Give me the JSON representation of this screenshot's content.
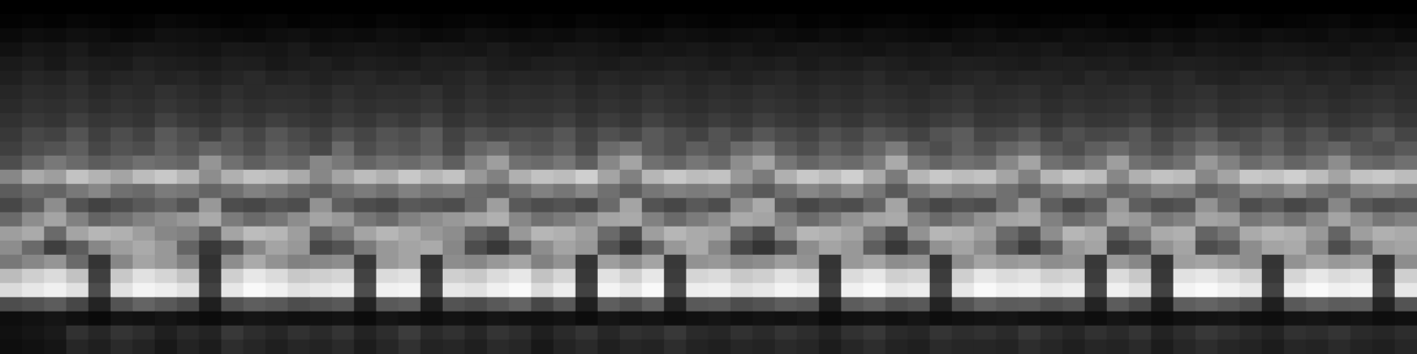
{
  "chart_data": {
    "type": "heatmap",
    "tick_labels": false,
    "grid": false,
    "color_range": [
      0,
      100
    ],
    "cells": [
      [
        0,
        0,
        0,
        0,
        0,
        0,
        0,
        0,
        0,
        0,
        0,
        0,
        0,
        0,
        0,
        0,
        0,
        0,
        0,
        0,
        0,
        0,
        0,
        0,
        0,
        0,
        0,
        0,
        0,
        0,
        0,
        0,
        0,
        0,
        0,
        0,
        0,
        0,
        0,
        0,
        0,
        0,
        0,
        0,
        0,
        0,
        0,
        0,
        0,
        0,
        0,
        0,
        0,
        0,
        0,
        0,
        0,
        0,
        0,
        0,
        0,
        0,
        0,
        0
      ],
      [
        2,
        3,
        2,
        4,
        3,
        2,
        3,
        5,
        4,
        3,
        2,
        3,
        4,
        2,
        3,
        3,
        2,
        4,
        3,
        2,
        3,
        4,
        3,
        2,
        3,
        2,
        4,
        3,
        3,
        2,
        4,
        3,
        2,
        3,
        3,
        4,
        2,
        3,
        2,
        3,
        4,
        3,
        2,
        3,
        4,
        3,
        2,
        3,
        3,
        4,
        2,
        3,
        3,
        2,
        4,
        5,
        3,
        2,
        3,
        4,
        5,
        3,
        4,
        3
      ],
      [
        6,
        8,
        7,
        9,
        8,
        6,
        7,
        10,
        9,
        8,
        7,
        6,
        8,
        9,
        7,
        8,
        7,
        9,
        8,
        6,
        7,
        10,
        8,
        7,
        8,
        7,
        9,
        8,
        6,
        7,
        9,
        8,
        7,
        8,
        9,
        7,
        6,
        8,
        7,
        9,
        8,
        7,
        6,
        8,
        9,
        7,
        8,
        7,
        9,
        8,
        7,
        6,
        8,
        7,
        9,
        8,
        7,
        9,
        8,
        7,
        10,
        8,
        9,
        7
      ],
      [
        10,
        13,
        12,
        15,
        11,
        12,
        14,
        13,
        12,
        11,
        14,
        13,
        12,
        15,
        11,
        12,
        13,
        12,
        11,
        14,
        13,
        12,
        15,
        12,
        11,
        13,
        14,
        12,
        11,
        13,
        12,
        14,
        12,
        13,
        11,
        12,
        14,
        13,
        12,
        11,
        13,
        12,
        14,
        11,
        12,
        13,
        12,
        14,
        11,
        12,
        13,
        12,
        14,
        11,
        13,
        12,
        12,
        14,
        13,
        12,
        11,
        13,
        12,
        14
      ],
      [
        15,
        17,
        14,
        18,
        16,
        15,
        19,
        17,
        16,
        15,
        18,
        17,
        14,
        16,
        18,
        15,
        17,
        16,
        15,
        18,
        17,
        19,
        16,
        15,
        17,
        18,
        16,
        15,
        17,
        16,
        18,
        17,
        15,
        17,
        16,
        18,
        15,
        17,
        16,
        19,
        17,
        15,
        16,
        18,
        17,
        16,
        15,
        17,
        18,
        16,
        17,
        15,
        16,
        18,
        17,
        16,
        15,
        17,
        18,
        16,
        17,
        15,
        16,
        18
      ],
      [
        18,
        22,
        20,
        24,
        19,
        21,
        23,
        20,
        22,
        19,
        21,
        24,
        20,
        22,
        19,
        21,
        23,
        20,
        22,
        19,
        21,
        24,
        20,
        22,
        21,
        23,
        19,
        22,
        20,
        21,
        23,
        20,
        22,
        19,
        21,
        23,
        20,
        22,
        21,
        24,
        20,
        22,
        19,
        21,
        23,
        20,
        22,
        21,
        19,
        23,
        20,
        22,
        21,
        24,
        20,
        19,
        22,
        21,
        23,
        20,
        22,
        19,
        21,
        23
      ],
      [
        22,
        25,
        24,
        27,
        23,
        26,
        24,
        28,
        25,
        23,
        27,
        24,
        26,
        25,
        23,
        27,
        24,
        26,
        25,
        28,
        23,
        27,
        24,
        26,
        25,
        27,
        23,
        26,
        24,
        28,
        25,
        23,
        26,
        24,
        27,
        25,
        23,
        26,
        24,
        27,
        25,
        23,
        26,
        28,
        24,
        25,
        27,
        23,
        26,
        24,
        25,
        27,
        23,
        26,
        28,
        24,
        25,
        27,
        24,
        26,
        23,
        25,
        27,
        24
      ],
      [
        24,
        28,
        27,
        30,
        26,
        29,
        27,
        31,
        28,
        26,
        30,
        27,
        29,
        28,
        26,
        30,
        27,
        29,
        28,
        31,
        26,
        30,
        27,
        29,
        28,
        30,
        26,
        29,
        27,
        31,
        28,
        26,
        29,
        27,
        30,
        28,
        26,
        29,
        27,
        30,
        28,
        26,
        29,
        31,
        27,
        28,
        30,
        26,
        29,
        27,
        28,
        30,
        26,
        29,
        31,
        27,
        28,
        30,
        27,
        29,
        26,
        28,
        30,
        27
      ],
      [
        28,
        32,
        30,
        35,
        31,
        33,
        30,
        36,
        33,
        30,
        34,
        31,
        35,
        32,
        30,
        34,
        31,
        35,
        33,
        36,
        30,
        34,
        31,
        33,
        32,
        35,
        30,
        34,
        31,
        36,
        33,
        30,
        34,
        31,
        35,
        32,
        30,
        34,
        31,
        35,
        33,
        30,
        34,
        36,
        31,
        32,
        35,
        30,
        34,
        31,
        32,
        35,
        30,
        33,
        36,
        31,
        32,
        35,
        31,
        34,
        30,
        32,
        35,
        31
      ],
      [
        32,
        38,
        36,
        42,
        35,
        40,
        36,
        44,
        40,
        35,
        42,
        37,
        43,
        39,
        35,
        41,
        37,
        42,
        40,
        45,
        36,
        41,
        38,
        40,
        39,
        43,
        36,
        41,
        38,
        44,
        40,
        36,
        42,
        37,
        43,
        39,
        36,
        41,
        38,
        43,
        40,
        36,
        42,
        45,
        37,
        39,
        43,
        36,
        41,
        38,
        39,
        43,
        36,
        40,
        44,
        37,
        39,
        43,
        37,
        41,
        36,
        39,
        43,
        37
      ],
      [
        35,
        40,
        42,
        46,
        38,
        42,
        40,
        46,
        42,
        48,
        44,
        40,
        46,
        42,
        38,
        50,
        40,
        44,
        42,
        46,
        38,
        48,
        52,
        44,
        42,
        46,
        38,
        50,
        54,
        44,
        40,
        46,
        42,
        50,
        55,
        44,
        40,
        46,
        42,
        48,
        56,
        44,
        40,
        46,
        42,
        48,
        52,
        44,
        40,
        46,
        50,
        44,
        40,
        46,
        52,
        48,
        42,
        46,
        40,
        44,
        48,
        42,
        40,
        44
      ],
      [
        40,
        48,
        55,
        50,
        45,
        48,
        52,
        50,
        48,
        65,
        52,
        46,
        50,
        48,
        60,
        55,
        48,
        52,
        50,
        54,
        46,
        58,
        68,
        52,
        50,
        54,
        46,
        60,
        70,
        52,
        48,
        54,
        50,
        62,
        70,
        54,
        48,
        52,
        50,
        56,
        72,
        54,
        48,
        52,
        50,
        60,
        70,
        52,
        48,
        54,
        68,
        52,
        48,
        52,
        66,
        58,
        50,
        54,
        48,
        52,
        62,
        50,
        48,
        52
      ],
      [
        60,
        72,
        68,
        80,
        75,
        70,
        78,
        82,
        76,
        62,
        74,
        80,
        78,
        72,
        60,
        70,
        78,
        74,
        82,
        76,
        80,
        66,
        58,
        74,
        80,
        78,
        84,
        70,
        58,
        76,
        82,
        78,
        80,
        66,
        56,
        74,
        82,
        78,
        84,
        72,
        56,
        76,
        82,
        78,
        80,
        70,
        58,
        76,
        82,
        78,
        60,
        74,
        80,
        78,
        60,
        70,
        82,
        80,
        84,
        78,
        70,
        80,
        82,
        78
      ],
      [
        45,
        50,
        48,
        55,
        60,
        52,
        50,
        56,
        54,
        48,
        52,
        58,
        55,
        50,
        46,
        52,
        56,
        52,
        58,
        54,
        56,
        50,
        46,
        52,
        58,
        54,
        60,
        52,
        46,
        54,
        58,
        56,
        58,
        50,
        44,
        52,
        60,
        56,
        62,
        54,
        44,
        54,
        60,
        56,
        58,
        52,
        46,
        54,
        60,
        56,
        48,
        52,
        58,
        56,
        46,
        50,
        58,
        56,
        62,
        54,
        50,
        58,
        60,
        56
      ],
      [
        38,
        45,
        62,
        42,
        36,
        40,
        44,
        48,
        42,
        66,
        40,
        38,
        42,
        40,
        64,
        46,
        40,
        38,
        44,
        42,
        40,
        50,
        68,
        44,
        40,
        42,
        38,
        50,
        70,
        42,
        38,
        44,
        40,
        62,
        72,
        44,
        38,
        42,
        40,
        48,
        70,
        44,
        38,
        42,
        40,
        52,
        68,
        46,
        38,
        44,
        66,
        46,
        40,
        42,
        64,
        52,
        40,
        44,
        38,
        42,
        60,
        44,
        40,
        42
      ],
      [
        50,
        62,
        70,
        58,
        48,
        52,
        58,
        62,
        66,
        72,
        56,
        50,
        54,
        62,
        70,
        66,
        54,
        50,
        58,
        62,
        66,
        70,
        74,
        60,
        52,
        56,
        62,
        70,
        72,
        58,
        50,
        56,
        62,
        72,
        70,
        58,
        50,
        56,
        64,
        70,
        72,
        58,
        50,
        56,
        64,
        70,
        72,
        58,
        50,
        56,
        70,
        66,
        54,
        58,
        70,
        68,
        54,
        58,
        52,
        60,
        70,
        62,
        54,
        58
      ],
      [
        68,
        72,
        50,
        70,
        76,
        74,
        68,
        60,
        58,
        45,
        70,
        78,
        76,
        68,
        48,
        56,
        70,
        76,
        72,
        66,
        62,
        48,
        42,
        66,
        76,
        74,
        68,
        50,
        40,
        68,
        76,
        72,
        70,
        48,
        40,
        62,
        76,
        74,
        70,
        54,
        40,
        64,
        76,
        74,
        68,
        50,
        42,
        62,
        76,
        72,
        46,
        58,
        72,
        74,
        48,
        54,
        72,
        76,
        74,
        66,
        48,
        68,
        74,
        72
      ],
      [
        62,
        50,
        35,
        45,
        60,
        68,
        72,
        66,
        48,
        32,
        42,
        60,
        70,
        66,
        38,
        42,
        56,
        66,
        70,
        72,
        60,
        40,
        32,
        44,
        62,
        70,
        66,
        42,
        30,
        48,
        66,
        72,
        60,
        38,
        30,
        42,
        62,
        70,
        66,
        46,
        32,
        44,
        64,
        70,
        62,
        44,
        34,
        46,
        66,
        70,
        36,
        42,
        64,
        70,
        40,
        44,
        62,
        70,
        72,
        60,
        40,
        52,
        68,
        70
      ],
      [
        55,
        60,
        65,
        50,
        30,
        60,
        70,
        66,
        58,
        28,
        62,
        72,
        64,
        58,
        60,
        62,
        32,
        66,
        70,
        30,
        62,
        60,
        66,
        70,
        58,
        64,
        30,
        68,
        62,
        70,
        32,
        64,
        66,
        60,
        62,
        68,
        64,
        30,
        66,
        70,
        62,
        64,
        30,
        62,
        70,
        66,
        68,
        62,
        64,
        32,
        66,
        60,
        30,
        68,
        70,
        66,
        62,
        30,
        64,
        70,
        66,
        68,
        30,
        62
      ],
      [
        78,
        84,
        88,
        80,
        35,
        82,
        90,
        86,
        80,
        32,
        84,
        92,
        88,
        82,
        84,
        86,
        36,
        88,
        90,
        34,
        84,
        82,
        88,
        92,
        80,
        86,
        32,
        90,
        84,
        92,
        34,
        86,
        88,
        82,
        84,
        90,
        86,
        32,
        88,
        92,
        84,
        86,
        34,
        84,
        92,
        88,
        90,
        84,
        86,
        34,
        88,
        82,
        32,
        90,
        92,
        88,
        84,
        32,
        86,
        92,
        88,
        90,
        34,
        84
      ],
      [
        88,
        92,
        95,
        90,
        40,
        90,
        96,
        94,
        90,
        36,
        92,
        98,
        95,
        90,
        92,
        94,
        40,
        95,
        96,
        38,
        92,
        90,
        95,
        98,
        88,
        94,
        36,
        96,
        92,
        98,
        38,
        94,
        95,
        90,
        92,
        96,
        94,
        36,
        95,
        98,
        92,
        94,
        38,
        92,
        98,
        95,
        96,
        92,
        94,
        38,
        95,
        90,
        36,
        96,
        98,
        95,
        92,
        36,
        94,
        98,
        95,
        96,
        38,
        92
      ],
      [
        40,
        42,
        45,
        38,
        20,
        42,
        48,
        44,
        40,
        18,
        42,
        46,
        44,
        40,
        42,
        44,
        20,
        44,
        46,
        18,
        42,
        40,
        44,
        48,
        38,
        44,
        18,
        46,
        42,
        48,
        20,
        44,
        45,
        40,
        42,
        46,
        44,
        18,
        45,
        48,
        42,
        44,
        20,
        42,
        48,
        45,
        46,
        42,
        44,
        20,
        45,
        40,
        18,
        46,
        48,
        45,
        42,
        18,
        44,
        48,
        45,
        46,
        20,
        42
      ],
      [
        8,
        10,
        12,
        9,
        6,
        11,
        10,
        12,
        9,
        7,
        10,
        12,
        11,
        9,
        10,
        11,
        7,
        12,
        10,
        8,
        11,
        9,
        12,
        10,
        9,
        11,
        7,
        12,
        10,
        11,
        8,
        10,
        12,
        9,
        11,
        10,
        12,
        7,
        10,
        11,
        9,
        12,
        8,
        10,
        11,
        12,
        10,
        9,
        11,
        8,
        12,
        9,
        7,
        10,
        11,
        12,
        9,
        8,
        11,
        12,
        10,
        11,
        8,
        9
      ],
      [
        10,
        12,
        15,
        28,
        22,
        30,
        26,
        18,
        24,
        20,
        32,
        26,
        22,
        28,
        24,
        30,
        20,
        26,
        34,
        24,
        28,
        22,
        30,
        26,
        18,
        24,
        30,
        22,
        28,
        26,
        32,
        24,
        22,
        28,
        24,
        30,
        26,
        20,
        28,
        32,
        24,
        22,
        30,
        26,
        28,
        24,
        32,
        26,
        22,
        28,
        24,
        30,
        20,
        26,
        32,
        28,
        24,
        20,
        28,
        26,
        30,
        24,
        22,
        26
      ],
      [
        8,
        10,
        12,
        22,
        18,
        24,
        20,
        14,
        20,
        16,
        26,
        22,
        18,
        22,
        20,
        24,
        16,
        22,
        28,
        20,
        22,
        18,
        24,
        22,
        14,
        20,
        24,
        18,
        22,
        20,
        26,
        20,
        18,
        22,
        20,
        24,
        22,
        16,
        22,
        26,
        20,
        18,
        24,
        22,
        22,
        20,
        26,
        22,
        18,
        22,
        20,
        24,
        16,
        22,
        26,
        22,
        20,
        16,
        22,
        20,
        24,
        20,
        18,
        22
      ]
    ]
  }
}
